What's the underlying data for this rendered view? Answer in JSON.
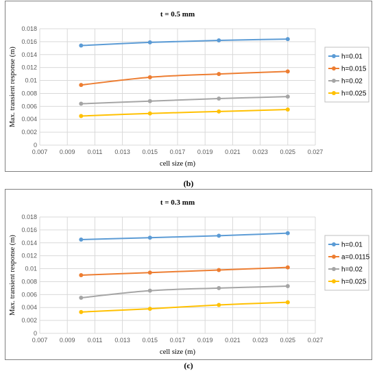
{
  "chart_data": [
    {
      "type": "line",
      "panel_label": "(b)",
      "title": "t = 0.5 mm",
      "xlabel": "cell size (m)",
      "ylabel": "Max. transient response (m)",
      "xlim": [
        0.007,
        0.027
      ],
      "ylim": [
        0,
        0.018
      ],
      "xticks": [
        "0.007",
        "0.009",
        "0.011",
        "0.013",
        "0.015",
        "0.017",
        "0.019",
        "0.021",
        "0.023",
        "0.025",
        "0.027"
      ],
      "yticks": [
        "0",
        "0.002",
        "0.004",
        "0.006",
        "0.008",
        "0.01",
        "0.012",
        "0.014",
        "0.016",
        "0.018"
      ],
      "grid": true,
      "legend": "right",
      "x": [
        0.01,
        0.015,
        0.02,
        0.025
      ],
      "series": [
        {
          "name": "h=0.01",
          "color": "#5b9bd5",
          "values": [
            0.0154,
            0.0159,
            0.0162,
            0.0164
          ]
        },
        {
          "name": "h=0.015",
          "color": "#ed7d31",
          "values": [
            0.0093,
            0.0105,
            0.011,
            0.0114
          ]
        },
        {
          "name": "h=0.02",
          "color": "#a5a5a5",
          "values": [
            0.0064,
            0.0068,
            0.0072,
            0.0075
          ]
        },
        {
          "name": "h=0.025",
          "color": "#ffc000",
          "values": [
            0.0045,
            0.0049,
            0.0052,
            0.0055
          ]
        }
      ]
    },
    {
      "type": "line",
      "panel_label": "(c)",
      "title": "t = 0.3 mm",
      "xlabel": "cell size (m)",
      "ylabel": "Max. transient response (m)",
      "xlim": [
        0.007,
        0.027
      ],
      "ylim": [
        0,
        0.018
      ],
      "xticks": [
        "0.007",
        "0.009",
        "0.011",
        "0.013",
        "0.015",
        "0.017",
        "0.019",
        "0.021",
        "0.023",
        "0.025",
        "0.027"
      ],
      "yticks": [
        "0",
        "0.002",
        "0.004",
        "0.006",
        "0.008",
        "0.01",
        "0.012",
        "0.014",
        "0.016",
        "0.018"
      ],
      "grid": true,
      "legend": "right",
      "x": [
        0.01,
        0.015,
        0.02,
        0.025
      ],
      "series": [
        {
          "name": "h=0.01",
          "color": "#5b9bd5",
          "values": [
            0.0145,
            0.0148,
            0.0151,
            0.0155
          ]
        },
        {
          "name": "a=0.0115",
          "color": "#ed7d31",
          "values": [
            0.009,
            0.0094,
            0.0098,
            0.0102
          ]
        },
        {
          "name": "h=0.02",
          "color": "#a5a5a5",
          "values": [
            0.0055,
            0.0066,
            0.007,
            0.0073
          ]
        },
        {
          "name": "h=0.025",
          "color": "#ffc000",
          "values": [
            0.0033,
            0.0038,
            0.0044,
            0.0048
          ]
        }
      ]
    }
  ]
}
